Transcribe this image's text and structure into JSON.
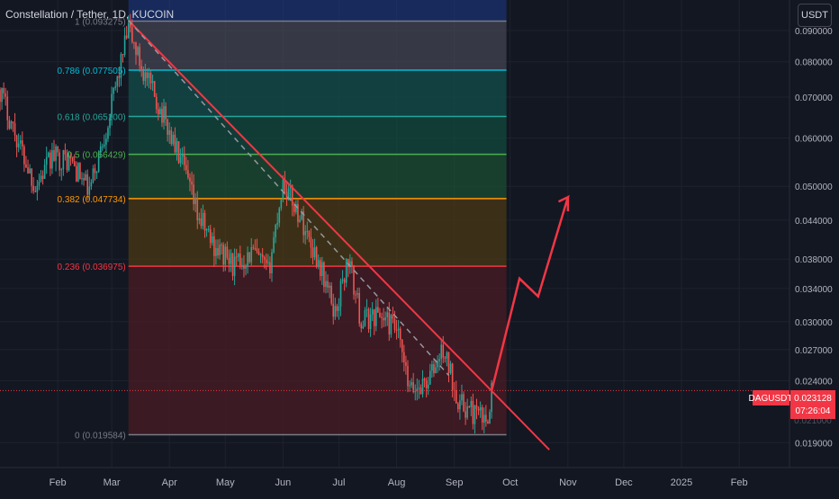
{
  "header": {
    "title": "Constellation / Tether, 1D, KUCOIN",
    "currency": "USDT"
  },
  "price_tag": {
    "symbol": "DAGUSDT",
    "price": "0.023128",
    "countdown": "07:26:04",
    "hidden_value": "0.021000"
  },
  "colors": {
    "background": "#131722",
    "up": "#26a69a",
    "down": "#ef5350",
    "trendline": "#f23645",
    "projection": "#f23645"
  },
  "chart_data": {
    "type": "candlestick",
    "title": "Constellation / Tether, 1D, KUCOIN",
    "y_scale": "log",
    "ylim": [
      0.0173,
      0.101
    ],
    "xlim": [
      "2024-01-01",
      "2025-02-28"
    ],
    "x_ticks": [
      {
        "label": "Feb",
        "date": "2024-02-01"
      },
      {
        "label": "Mar",
        "date": "2024-03-01"
      },
      {
        "label": "Apr",
        "date": "2024-04-01"
      },
      {
        "label": "May",
        "date": "2024-05-01"
      },
      {
        "label": "Jun",
        "date": "2024-06-01"
      },
      {
        "label": "Jul",
        "date": "2024-07-01"
      },
      {
        "label": "Aug",
        "date": "2024-08-01"
      },
      {
        "label": "Sep",
        "date": "2024-09-01"
      },
      {
        "label": "Oct",
        "date": "2024-10-01"
      },
      {
        "label": "Nov",
        "date": "2024-11-01"
      },
      {
        "label": "Dec",
        "date": "2024-12-01"
      },
      {
        "label": "2025",
        "date": "2025-01-01"
      },
      {
        "label": "Feb",
        "date": "2025-02-01"
      }
    ],
    "y_ticks": [
      "0.090000",
      "0.080000",
      "0.070000",
      "0.060000",
      "0.050000",
      "0.044000",
      "0.038000",
      "0.034000",
      "0.030000",
      "0.027000",
      "0.024000",
      "0.019000"
    ],
    "fib_levels": [
      {
        "label": "1 (0.093275)",
        "value": 0.093275,
        "color": "#787b86"
      },
      {
        "label": "0.786 (0.077505)",
        "value": 0.077505,
        "color": "#00bcd4"
      },
      {
        "label": "0.618 (0.065100)",
        "value": 0.0651,
        "color": "#26a69a"
      },
      {
        "label": "0.5 (0.056429)",
        "value": 0.056429,
        "color": "#4caf50"
      },
      {
        "label": "0.382 (0.047734)",
        "value": 0.047734,
        "color": "#ff9800"
      },
      {
        "label": "0.236 (0.036975)",
        "value": 0.036975,
        "color": "#f23645"
      },
      {
        "label": "0 (0.019584)",
        "value": 0.019584,
        "color": "#787b86"
      }
    ],
    "fib_range": [
      "2024-03-10",
      "2024-09-29"
    ],
    "current_price": 0.023128,
    "trendline": [
      [
        "2024-03-10",
        0.0935
      ],
      [
        "2024-10-22",
        0.0185
      ]
    ],
    "dashed_line": [
      [
        "2024-03-10",
        0.0935
      ],
      [
        "2024-08-29",
        0.0245
      ]
    ],
    "projection": [
      [
        "2024-09-21",
        0.0231
      ],
      [
        "2024-10-06",
        0.0353
      ],
      [
        "2024-10-16",
        0.033
      ],
      [
        "2024-11-01",
        0.048
      ],
      [
        "2024-10-27",
        0.0472
      ],
      [
        "2024-11-01",
        0.048
      ],
      [
        "2024-11-01",
        0.0455
      ]
    ],
    "anchors": [
      [
        "2024-01-01",
        0.072
      ],
      [
        "2024-01-10",
        0.06
      ],
      [
        "2024-01-20",
        0.05
      ],
      [
        "2024-01-29",
        0.056
      ],
      [
        "2024-02-08",
        0.055
      ],
      [
        "2024-02-18",
        0.049
      ],
      [
        "2024-02-28",
        0.064
      ],
      [
        "2024-03-10",
        0.0905
      ],
      [
        "2024-03-18",
        0.077
      ],
      [
        "2024-03-28",
        0.066
      ],
      [
        "2024-04-08",
        0.054
      ],
      [
        "2024-04-16",
        0.045
      ],
      [
        "2024-04-25",
        0.04
      ],
      [
        "2024-05-06",
        0.037
      ],
      [
        "2024-05-16",
        0.039
      ],
      [
        "2024-05-24",
        0.036
      ],
      [
        "2024-06-01",
        0.051
      ],
      [
        "2024-06-11",
        0.044
      ],
      [
        "2024-06-21",
        0.037
      ],
      [
        "2024-06-29",
        0.031
      ],
      [
        "2024-07-06",
        0.038
      ],
      [
        "2024-07-13",
        0.03
      ],
      [
        "2024-07-22",
        0.031
      ],
      [
        "2024-08-01",
        0.029
      ],
      [
        "2024-08-08",
        0.023
      ],
      [
        "2024-08-18",
        0.024
      ],
      [
        "2024-08-26",
        0.027
      ],
      [
        "2024-09-04",
        0.022
      ],
      [
        "2024-09-14",
        0.021
      ],
      [
        "2024-09-18",
        0.0205
      ],
      [
        "2024-09-21",
        0.0231
      ]
    ]
  }
}
